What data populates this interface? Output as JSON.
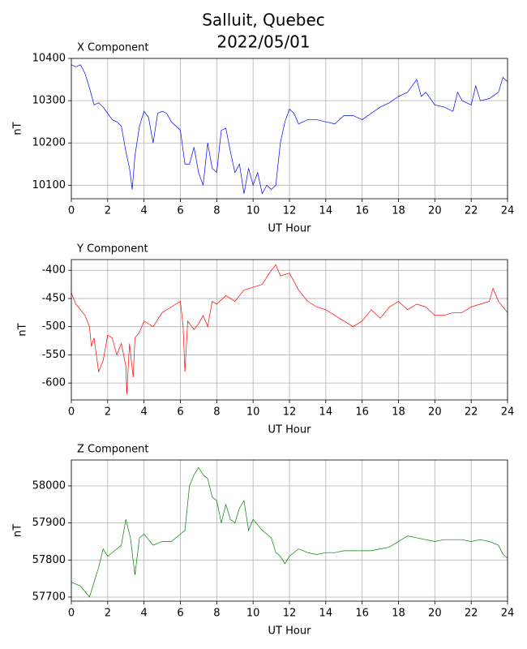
{
  "title_lines": [
    "Salluit, Quebec",
    "2022/05/01"
  ],
  "chart_data": [
    {
      "type": "line",
      "title": "X Component",
      "xlabel": "UT Hour",
      "ylabel": "nT",
      "color": "#0000ff",
      "grid": true,
      "xlim": [
        0,
        24
      ],
      "xticks": [
        0,
        2,
        4,
        6,
        8,
        10,
        12,
        14,
        16,
        18,
        20,
        22,
        24
      ],
      "ylim": [
        10068,
        10400
      ],
      "yticks": [
        10100,
        10200,
        10300,
        10400
      ],
      "x": [
        0,
        0.25,
        0.5,
        0.75,
        1,
        1.25,
        1.5,
        1.75,
        2,
        2.25,
        2.5,
        2.75,
        3,
        3.2,
        3.35,
        3.5,
        3.75,
        4,
        4.25,
        4.5,
        4.75,
        5,
        5.25,
        5.5,
        5.75,
        6,
        6.25,
        6.5,
        6.75,
        7,
        7.25,
        7.5,
        7.75,
        8,
        8.25,
        8.5,
        8.75,
        9,
        9.25,
        9.5,
        9.75,
        10,
        10.25,
        10.5,
        10.75,
        11,
        11.25,
        11.5,
        11.75,
        12,
        12.25,
        12.5,
        13,
        13.5,
        14,
        14.5,
        15,
        15.5,
        16,
        16.5,
        17,
        17.5,
        18,
        18.5,
        19,
        19.25,
        19.5,
        20,
        20.5,
        21,
        21.25,
        21.5,
        22,
        22.25,
        22.5,
        23,
        23.5,
        23.75,
        24
      ],
      "values": [
        10385,
        10380,
        10385,
        10365,
        10330,
        10290,
        10295,
        10285,
        10270,
        10255,
        10250,
        10240,
        10180,
        10140,
        10090,
        10170,
        10240,
        10275,
        10260,
        10200,
        10270,
        10275,
        10270,
        10250,
        10240,
        10230,
        10150,
        10150,
        10190,
        10130,
        10100,
        10200,
        10140,
        10130,
        10230,
        10235,
        10180,
        10130,
        10150,
        10080,
        10140,
        10100,
        10130,
        10080,
        10100,
        10090,
        10100,
        10200,
        10250,
        10280,
        10270,
        10245,
        10255,
        10255,
        10250,
        10245,
        10265,
        10265,
        10255,
        10270,
        10285,
        10295,
        10310,
        10320,
        10350,
        10310,
        10320,
        10290,
        10285,
        10275,
        10320,
        10300,
        10290,
        10335,
        10300,
        10305,
        10320,
        10355,
        10345
      ]
    },
    {
      "type": "line",
      "title": "Y Component",
      "xlabel": "UT Hour",
      "ylabel": "nT",
      "color": "#ff0000",
      "grid": true,
      "xlim": [
        0,
        24
      ],
      "xticks": [
        0,
        2,
        4,
        6,
        8,
        10,
        12,
        14,
        16,
        18,
        20,
        22,
        24
      ],
      "ylim": [
        -630,
        -381
      ],
      "yticks": [
        -600,
        -550,
        -500,
        -450,
        -400
      ],
      "x": [
        0,
        0.25,
        0.5,
        0.75,
        1,
        1.1,
        1.25,
        1.5,
        1.75,
        2,
        2.25,
        2.5,
        2.75,
        3,
        3.05,
        3.2,
        3.4,
        3.5,
        3.75,
        4,
        4.5,
        5,
        5.5,
        6,
        6.15,
        6.25,
        6.4,
        6.75,
        7,
        7.25,
        7.5,
        7.75,
        8,
        8.5,
        9,
        9.5,
        10,
        10.5,
        11,
        11.25,
        11.5,
        12,
        12.5,
        13,
        13.5,
        14,
        14.5,
        15,
        15.5,
        16,
        16.5,
        17,
        17.5,
        18,
        18.5,
        19,
        19.5,
        20,
        20.5,
        21,
        21.5,
        22,
        22.5,
        23,
        23.2,
        23.5,
        24
      ],
      "values": [
        -440,
        -460,
        -470,
        -480,
        -500,
        -535,
        -520,
        -580,
        -560,
        -515,
        -520,
        -550,
        -530,
        -570,
        -620,
        -530,
        -590,
        -520,
        -510,
        -490,
        -500,
        -475,
        -465,
        -455,
        -500,
        -580,
        -490,
        -505,
        -495,
        -480,
        -500,
        -455,
        -460,
        -445,
        -455,
        -435,
        -430,
        -425,
        -400,
        -390,
        -410,
        -405,
        -435,
        -455,
        -465,
        -470,
        -480,
        -490,
        -500,
        -490,
        -470,
        -485,
        -465,
        -455,
        -470,
        -460,
        -465,
        -480,
        -480,
        -475,
        -475,
        -465,
        -460,
        -455,
        -432,
        -455,
        -475
      ]
    },
    {
      "type": "line",
      "title": "Z Component",
      "xlabel": "UT Hour",
      "ylabel": "nT",
      "color": "#008000",
      "grid": true,
      "xlim": [
        0,
        24
      ],
      "xticks": [
        0,
        2,
        4,
        6,
        8,
        10,
        12,
        14,
        16,
        18,
        20,
        22,
        24
      ],
      "ylim": [
        57689,
        58070
      ],
      "yticks": [
        57700,
        57800,
        57900,
        58000
      ],
      "x": [
        0,
        0.5,
        0.75,
        1,
        1.25,
        1.5,
        1.75,
        2,
        2.5,
        2.75,
        3,
        3.25,
        3.5,
        3.75,
        4,
        4.5,
        5,
        5.5,
        6,
        6.25,
        6.5,
        6.75,
        7,
        7.25,
        7.5,
        7.75,
        8,
        8.25,
        8.5,
        8.75,
        9,
        9.25,
        9.5,
        9.75,
        10,
        10.5,
        11,
        11.25,
        11.5,
        11.75,
        12,
        12.5,
        13,
        13.5,
        14,
        14.5,
        15,
        15.5,
        16,
        16.5,
        17,
        17.5,
        18,
        18.5,
        19,
        19.5,
        20,
        20.5,
        21,
        21.5,
        22,
        22.5,
        23,
        23.5,
        23.75,
        24
      ],
      "values": [
        57740,
        57730,
        57715,
        57700,
        57740,
        57780,
        57830,
        57810,
        57830,
        57840,
        57910,
        57860,
        57760,
        57860,
        57870,
        57840,
        57850,
        57850,
        57870,
        57880,
        58000,
        58030,
        58050,
        58030,
        58020,
        57970,
        57960,
        57900,
        57950,
        57910,
        57900,
        57940,
        57960,
        57880,
        57910,
        57880,
        57860,
        57820,
        57810,
        57790,
        57810,
        57830,
        57820,
        57815,
        57820,
        57820,
        57825,
        57825,
        57825,
        57825,
        57830,
        57835,
        57850,
        57865,
        57860,
        57855,
        57850,
        57855,
        57855,
        57855,
        57850,
        57855,
        57850,
        57840,
        57815,
        57805
      ]
    }
  ]
}
